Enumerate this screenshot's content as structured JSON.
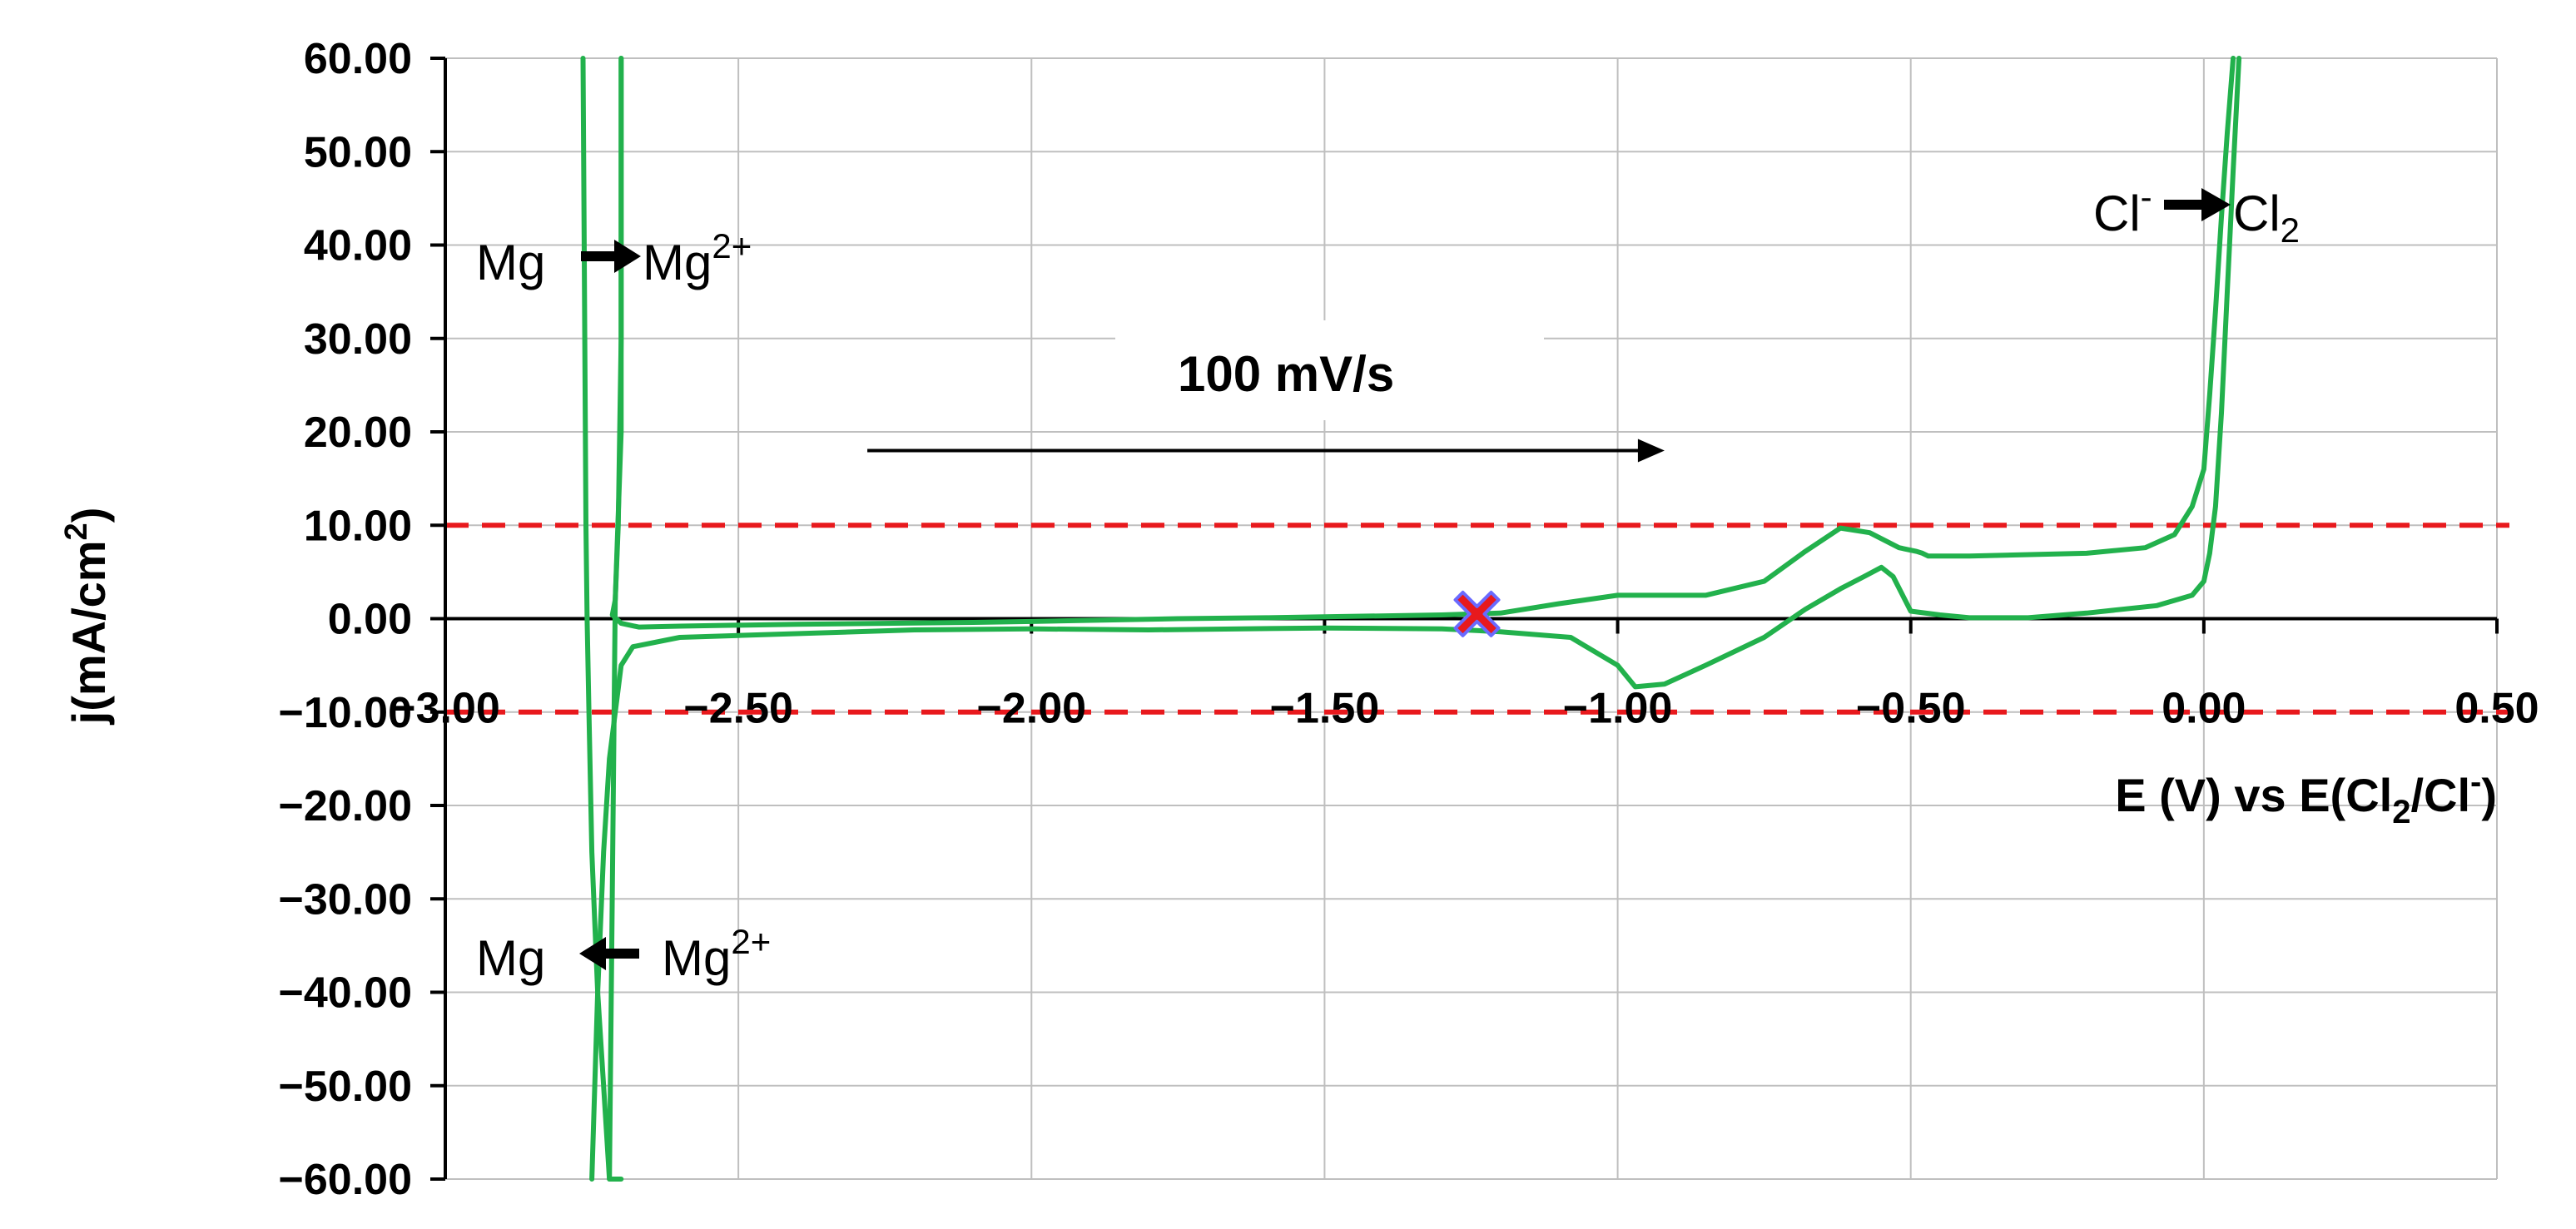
{
  "chart_data": {
    "type": "line",
    "xlabel": {
      "base": "E (V) vs E(Cl",
      "sub": "2",
      "mid": "/Cl",
      "sup": "-",
      "end": ")"
    },
    "ylabel": {
      "base": "j(mA/cm",
      "sup": "2",
      "end": ")"
    },
    "xlim": [
      -3.0,
      0.5
    ],
    "ylim": [
      -60,
      60
    ],
    "x_ticks": [
      -3.0,
      -2.5,
      -2.0,
      -1.5,
      -1.0,
      -0.5,
      0.0,
      0.5
    ],
    "x_tick_labels": [
      "−3.00",
      "−2.50",
      "−2.00",
      "−1.50",
      "−1.00",
      "−0.50",
      "0.00",
      "0.50"
    ],
    "y_ticks": [
      60,
      50,
      40,
      30,
      20,
      10,
      0,
      -10,
      -20,
      -30,
      -40,
      -50,
      -60
    ],
    "y_tick_labels": [
      "60.00",
      "50.00",
      "40.00",
      "30.00",
      "20.00",
      "10.00",
      "0.00",
      "−10.00",
      "−20.00",
      "−30.00",
      "−40.00",
      "−50.00",
      "−60.00"
    ],
    "grid": true,
    "series": [
      {
        "color": "#22b14c",
        "x": [
          -2.7,
          -2.7,
          -2.705,
          -2.71,
          -2.715,
          -2.7,
          -2.67,
          -2.6,
          -2.4,
          -2.1,
          -2.0,
          -1.75,
          -1.6,
          -1.5,
          -1.3,
          -1.2,
          -1.1,
          -1.0,
          -0.85,
          -0.75,
          -0.68,
          -0.62,
          -0.57,
          -0.52,
          -0.49,
          -0.48,
          -0.47,
          -0.4,
          -0.2,
          -0.1,
          -0.05,
          -0.02,
          0.0,
          0.01,
          0.02,
          0.03,
          0.04,
          0.05
        ],
        "y": [
          60,
          30,
          10,
          2,
          0.4,
          -0.5,
          -0.9,
          -0.8,
          -0.6,
          -0.4,
          -0.3,
          0.0,
          0.1,
          0.2,
          0.4,
          0.6,
          1.6,
          2.5,
          2.5,
          4.0,
          7.2,
          9.7,
          9.2,
          7.6,
          7.2,
          7.0,
          6.7,
          6.7,
          7.0,
          7.6,
          9.0,
          12.0,
          16.0,
          24.0,
          33.0,
          43.0,
          52.0,
          60.0
        ]
      },
      {
        "color": "#22b14c",
        "x": [
          0.06,
          0.05,
          0.04,
          0.03,
          0.02,
          0.01,
          0.0,
          -0.02,
          -0.08,
          -0.2,
          -0.3,
          -0.4,
          -0.45,
          -0.5,
          -0.53,
          -0.55,
          -0.58,
          -0.62,
          -0.68,
          -0.75,
          -0.85,
          -0.92,
          -0.97,
          -1.0,
          -1.08,
          -1.2,
          -1.3,
          -1.5,
          -1.8,
          -2.0,
          -2.2,
          -2.5,
          -2.6,
          -2.68,
          -2.7,
          -2.72,
          -2.73,
          -2.74,
          -2.745,
          -2.75
        ],
        "y": [
          60,
          48,
          35,
          22,
          12,
          7,
          4,
          2.5,
          1.4,
          0.6,
          0.1,
          0.1,
          0.4,
          0.8,
          4.5,
          5.5,
          4.5,
          3.2,
          1.0,
          -2.0,
          -5.0,
          -7.0,
          -7.3,
          -5.0,
          -2.0,
          -1.4,
          -1.1,
          -1.0,
          -1.2,
          -1.1,
          -1.2,
          -1.8,
          -2.0,
          -3.0,
          -5.0,
          -15.0,
          -25.0,
          -40.0,
          -50.0,
          -60.0
        ]
      },
      {
        "color": "#22b14c",
        "x": [
          -2.765,
          -2.762,
          -2.76,
          -2.758,
          -2.755,
          -2.75,
          -2.74,
          -2.73,
          -2.72,
          -2.71,
          -2.7
        ],
        "y": [
          60,
          30,
          10,
          0,
          -10,
          -25,
          -40,
          -50,
          -60,
          -60,
          -60
        ]
      },
      {
        "color": "#22b14c",
        "x": [
          -2.7,
          -2.7,
          -2.71,
          -2.72
        ],
        "y": [
          60,
          20,
          2,
          -60
        ]
      }
    ],
    "reference_lines": [
      {
        "y": 10,
        "color": "#e8191d",
        "style": "dashed"
      },
      {
        "y": -10,
        "color": "#e8191d",
        "style": "dashed"
      }
    ],
    "marker": {
      "x": -1.24,
      "y": 0.5,
      "fill": "#e8191d",
      "stroke": "#6a6aff",
      "shape": "x"
    },
    "annotations": {
      "scan_rate": "100 mV/s",
      "scan_arrow": {
        "x_from": -2.28,
        "x_to": -0.92,
        "y": 18
      },
      "mg_ox": {
        "left": "Mg",
        "right": "Mg",
        "right_sup": "2+",
        "direction": "right"
      },
      "mg_red": {
        "left": "Mg",
        "right": "Mg",
        "right_sup": "2+",
        "direction": "left"
      },
      "cl_ox": {
        "left": "Cl",
        "left_sup": "-",
        "right": "Cl",
        "right_sub": "2",
        "direction": "right"
      }
    }
  }
}
